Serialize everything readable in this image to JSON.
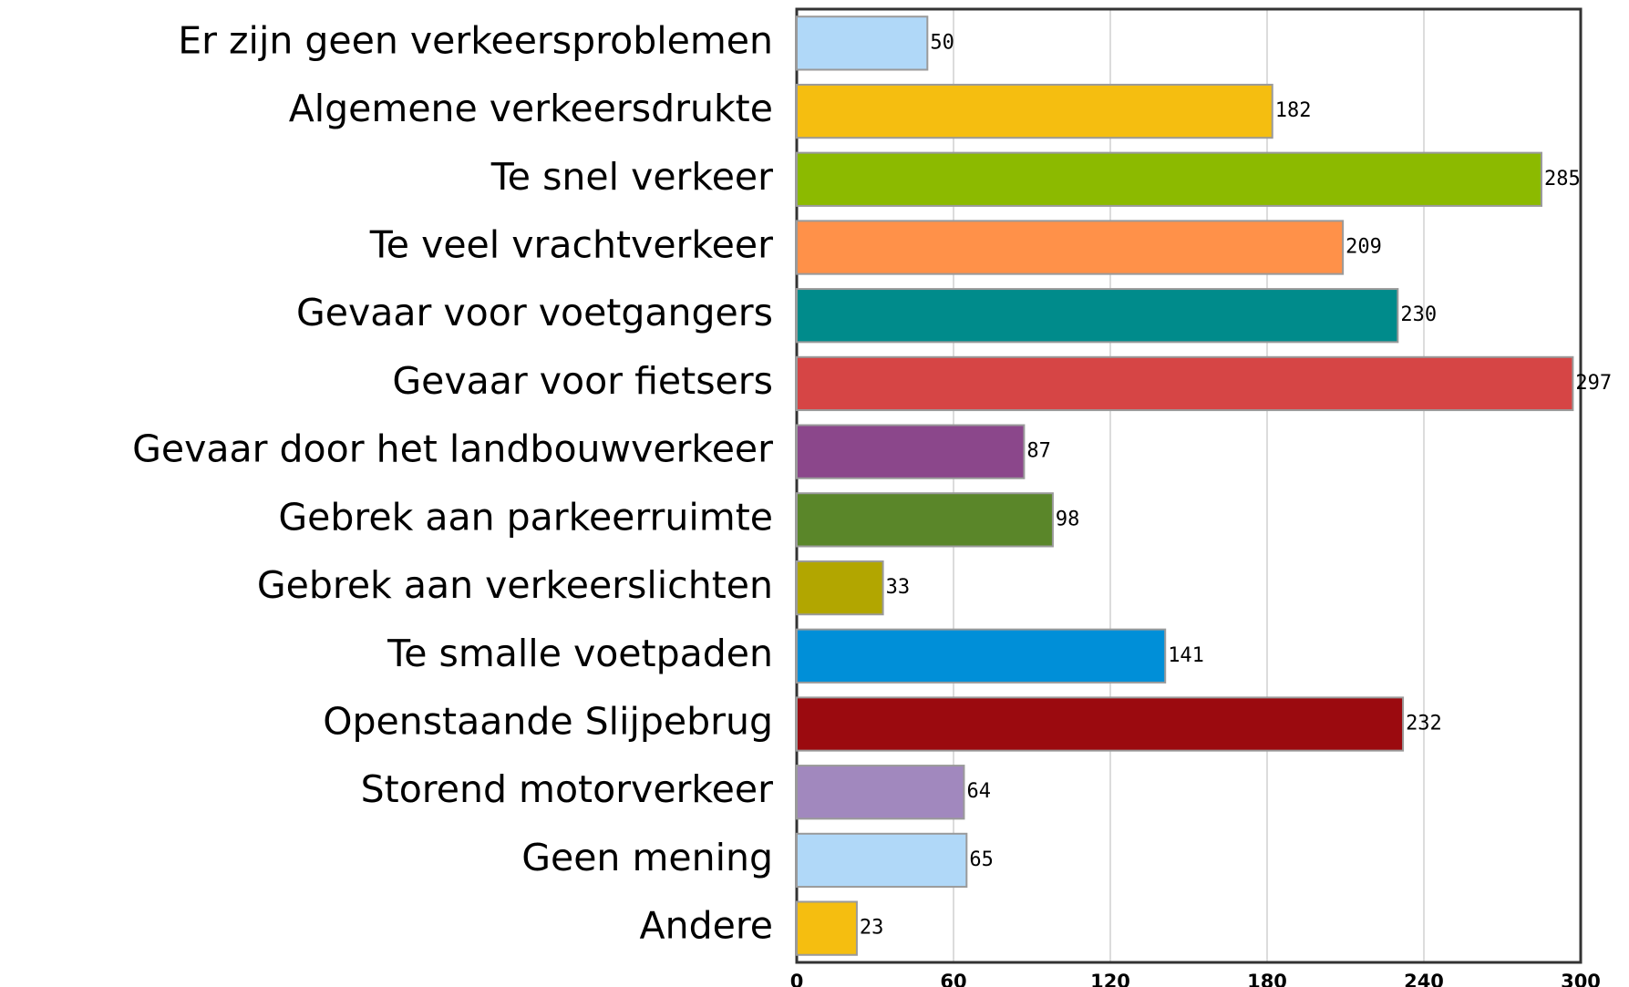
{
  "chart_data": {
    "type": "bar",
    "orientation": "horizontal",
    "categories": [
      "Er zijn geen verkeersproblemen",
      "Algemene verkeersdrukte",
      "Te snel verkeer",
      "Te veel vrachtverkeer",
      "Gevaar voor voetgangers",
      "Gevaar voor fietsers",
      "Gevaar door het landbouwverkeer",
      "Gebrek aan parkeerruimte",
      "Gebrek aan verkeerslichten",
      "Te smalle voetpaden",
      "Openstaande Slijpebrug",
      "Storend motorverkeer",
      "Geen mening",
      "Andere"
    ],
    "values": [
      50,
      182,
      285,
      209,
      230,
      297,
      87,
      98,
      33,
      141,
      232,
      64,
      65,
      23
    ],
    "colors": [
      "#b0d8f8",
      "#f5be10",
      "#8cba00",
      "#ff9149",
      "#008b8b",
      "#d64545",
      "#8b478b",
      "#5a8629",
      "#b2a600",
      "#008fd8",
      "#9b0a0f",
      "#a188be",
      "#b0d8f8",
      "#f5be10"
    ],
    "xlim": [
      0,
      300
    ],
    "xticks": [
      0,
      60,
      120,
      180,
      240,
      300
    ],
    "grid": true
  }
}
